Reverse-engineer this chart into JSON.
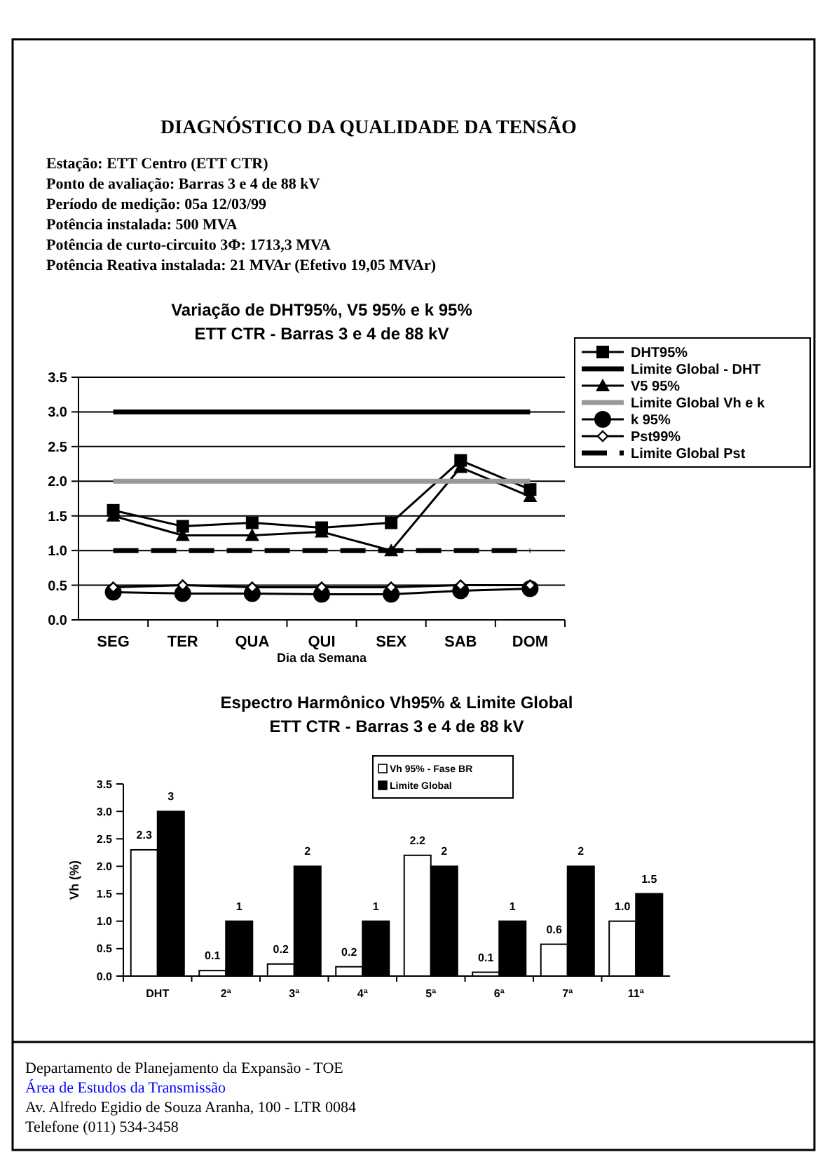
{
  "chart_data": [
    {
      "type": "line",
      "title": "Variação de DHT95%, V5 95% e k 95%",
      "subtitle": "ETT CTR - Barras 3 e 4 de 88 kV",
      "xlabel": "Dia da Semana",
      "annotations": [
        "DIAGNÓSTICO DA QUALIDADE DA TENSÃO",
        "Estação: ETT Centro (ETT CTR)",
        "Ponto de avaliação: Barras 3 e 4 de 88 kV",
        "Período de medição: 05a 12/03/99",
        "Potência instalada: 500 MVA",
        "Potência de curto-circuito 3Φ: 1713,3 MVA",
        "Potência Reativa instalada: 21 MVAr (Efetivo 19,05 MVAr)"
      ],
      "categories": [
        "SEG",
        "TER",
        "QUA",
        "QUI",
        "SEX",
        "SAB",
        "DOM"
      ],
      "series": [
        {
          "name": "DHT95%",
          "color": "#000000",
          "marker": "square",
          "line_style": "solid",
          "values": [
            1.58,
            1.35,
            1.4,
            1.33,
            1.4,
            2.3,
            1.88
          ]
        },
        {
          "name": "Limite Global - DHT",
          "color": "#000000",
          "marker": "none",
          "line_style": "solid",
          "values": [
            3.0,
            3.0,
            3.0,
            3.0,
            3.0,
            3.0,
            3.0
          ]
        },
        {
          "name": "V5 95%",
          "color": "#000000",
          "marker": "triangle",
          "line_style": "solid",
          "values": [
            1.5,
            1.22,
            1.22,
            1.27,
            1.0,
            2.2,
            1.78
          ]
        },
        {
          "name": "Limite Global Vh e k",
          "color": "#999999",
          "marker": "none",
          "line_style": "solid",
          "values": [
            2.0,
            2.0,
            2.0,
            2.0,
            2.0,
            2.0,
            2.0
          ]
        },
        {
          "name": "k 95%",
          "color": "#000000",
          "marker": "circle",
          "line_style": "solid",
          "values": [
            0.4,
            0.38,
            0.38,
            0.37,
            0.37,
            0.42,
            0.45
          ]
        },
        {
          "name": "Pst99%",
          "color": "#000000",
          "marker": "diamond",
          "line_style": "solid",
          "values": [
            0.47,
            0.5,
            0.47,
            0.47,
            0.47,
            0.5,
            0.5
          ]
        },
        {
          "name": "Limite Global Pst",
          "color": "#000000",
          "marker": "none",
          "line_style": "dashed",
          "values": [
            1.0,
            1.0,
            1.0,
            1.0,
            1.0,
            1.0,
            1.0
          ]
        }
      ],
      "ylim": [
        0,
        3.5
      ],
      "yticks": [
        {
          "value": 0,
          "label": "0.0"
        },
        {
          "value": 0.5,
          "label": "0.5"
        },
        {
          "value": 1,
          "label": "1.0"
        },
        {
          "value": 1.5,
          "label": "1.5"
        },
        {
          "value": 2,
          "label": "2.0"
        },
        {
          "value": 2.5,
          "label": "2.5"
        },
        {
          "value": 3,
          "label": "3.0"
        },
        {
          "value": 3.5,
          "label": "3.5"
        }
      ],
      "grid": "y",
      "legend": "top right"
    },
    {
      "type": "bar",
      "title": "Espectro Harmônico Vh95% & Limite Global",
      "subtitle": "ETT CTR - Barras 3 e 4 de 88 kV",
      "ylabel": "Vh (%)",
      "annotations": [
        "Departamento de Planejamento da Expansão - TOE",
        "Área de Estudos da Transmissão",
        "Av. Alfredo Egidio de Souza Aranha, 100 - LTR 0084",
        "Telefone (011) 534-3458"
      ],
      "categories": [
        "DHT",
        "2ª",
        "3ª",
        "4ª",
        "5ª",
        "6ª",
        "7ª",
        "11ª"
      ],
      "series": [
        {
          "name": "Vh 95% - Fase BR",
          "color": "#ffffff",
          "values": [
            2.3,
            0.1,
            0.22,
            0.17,
            2.2,
            0.07,
            0.58,
            1.0
          ],
          "value_labels": [
            "2.3",
            "0.1",
            "0.2",
            "0.2",
            "2.2",
            "0.1",
            "0.6",
            "1.0"
          ]
        },
        {
          "name": "Limite Global",
          "color": "#000000",
          "values": [
            3,
            1,
            2,
            1,
            2,
            1,
            2,
            1.5
          ],
          "value_labels": [
            "3",
            "1",
            "2",
            "1",
            "2",
            "1",
            "2",
            "1.5"
          ]
        }
      ],
      "ylim": [
        0,
        3.5
      ],
      "yticks": [
        {
          "value": 0,
          "label": "0.0"
        },
        {
          "value": 0.5,
          "label": "0.5"
        },
        {
          "value": 1,
          "label": "1.0"
        },
        {
          "value": 1.5,
          "label": "1.5"
        },
        {
          "value": 2,
          "label": "2.0"
        },
        {
          "value": 2.5,
          "label": "2.5"
        },
        {
          "value": 3,
          "label": "3.0"
        },
        {
          "value": 3.5,
          "label": "3.5"
        }
      ],
      "grid": false,
      "legend": "top"
    }
  ]
}
